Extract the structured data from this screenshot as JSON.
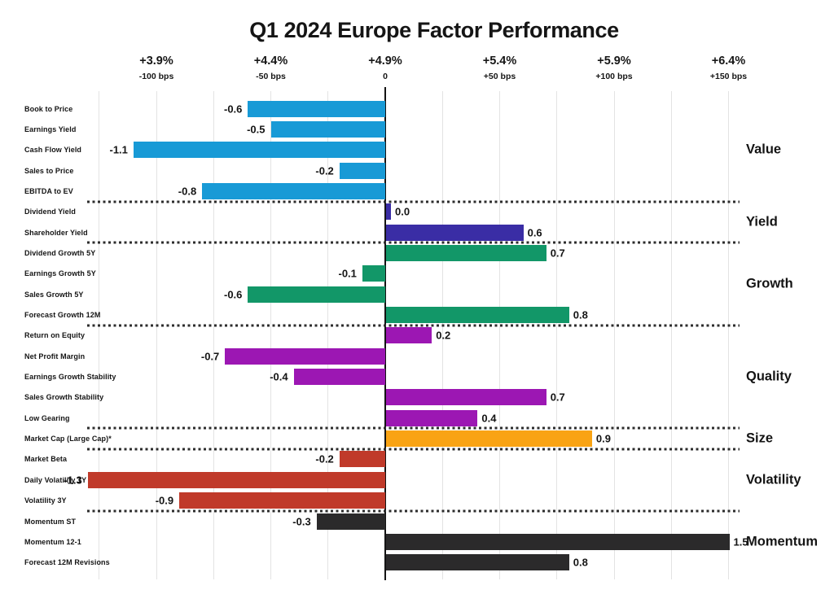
{
  "title": "Q1 2024 Europe Factor Performance",
  "colors": {
    "background": "#ffffff",
    "text": "#141414",
    "gridline": "#e3e3e3",
    "zero_axis": "#141414",
    "separator": "#2c2c2c"
  },
  "chart_data": {
    "type": "bar",
    "orientation": "horizontal",
    "title": "Q1 2024 Europe Factor Performance",
    "legend_position": "right-group-labels",
    "grid": true,
    "x_axis": {
      "range_bps": [
        -125,
        150
      ],
      "ticks": [
        {
          "percent_label": "+3.9%",
          "bps_label": "-100 bps",
          "bps": -100
        },
        {
          "percent_label": "+4.4%",
          "bps_label": "-50 bps",
          "bps": -50
        },
        {
          "percent_label": "+4.9%",
          "bps_label": "0",
          "bps": 0
        },
        {
          "percent_label": "+5.4%",
          "bps_label": "+50 bps",
          "bps": 50
        },
        {
          "percent_label": "+5.9%",
          "bps_label": "+100 bps",
          "bps": 100
        },
        {
          "percent_label": "+6.4%",
          "bps_label": "+150 bps",
          "bps": 150
        }
      ]
    },
    "groups": [
      {
        "label": "Value",
        "color": "#189ad6",
        "bars": [
          {
            "label": "Book to Price",
            "value": -0.6
          },
          {
            "label": "Earnings Yield",
            "value": -0.5
          },
          {
            "label": "Cash Flow Yield",
            "value": -1.1
          },
          {
            "label": "Sales to Price",
            "value": -0.2
          },
          {
            "label": "EBITDA to EV",
            "value": -0.8
          }
        ]
      },
      {
        "label": "Yield",
        "color": "#3a2da5",
        "bars": [
          {
            "label": "Dividend Yield",
            "value": 0.0
          },
          {
            "label": "Shareholder Yield",
            "value": 0.6
          }
        ]
      },
      {
        "label": "Growth",
        "color": "#129768",
        "bars": [
          {
            "label": "Dividend Growth 5Y",
            "value": 0.7
          },
          {
            "label": "Earnings Growth 5Y",
            "value": -0.1
          },
          {
            "label": "Sales Growth 5Y",
            "value": -0.6
          },
          {
            "label": "Forecast Growth 12M",
            "value": 0.8
          }
        ]
      },
      {
        "label": "Quality",
        "color": "#9c17b3",
        "bars": [
          {
            "label": "Return on Equity",
            "value": 0.2
          },
          {
            "label": "Net Profit Margin",
            "value": -0.7
          },
          {
            "label": "Earnings Growth Stability",
            "value": -0.4
          },
          {
            "label": "Sales Growth Stability",
            "value": 0.7
          },
          {
            "label": "Low Gearing",
            "value": 0.4
          }
        ]
      },
      {
        "label": "Size",
        "color": "#f9a314",
        "bars": [
          {
            "label": "Market Cap (Large Cap)*",
            "value": 0.9
          }
        ]
      },
      {
        "label": "Volatility",
        "color": "#c03a2a",
        "bars": [
          {
            "label": "Market Beta",
            "value": -0.2
          },
          {
            "label": "Daily Volatility 1Y",
            "value": -1.3
          },
          {
            "label": "Volatility 3Y",
            "value": -0.9
          }
        ]
      },
      {
        "label": "Momentum",
        "color": "#2b2a2b",
        "bars": [
          {
            "label": "Momentum ST",
            "value": -0.3
          },
          {
            "label": "Momentum 12-1",
            "value": 1.5
          },
          {
            "label": "Forecast 12M Revisions",
            "value": 0.8
          }
        ]
      }
    ]
  }
}
